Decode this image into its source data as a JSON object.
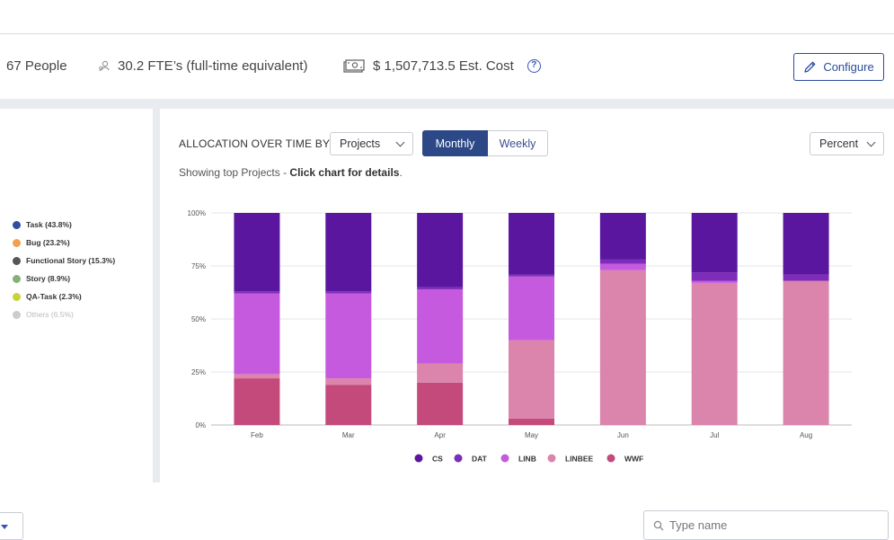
{
  "stats": {
    "people": "67 People",
    "fte": "30.2 FTE’s (full-time equivalent)",
    "cost": "$ 1,507,713.5 Est. Cost",
    "configure_label": "Configure"
  },
  "left_legend": [
    {
      "label": "Task (43.8%)",
      "color": "#2f4ea0"
    },
    {
      "label": "Bug (23.2%)",
      "color": "#f0a050"
    },
    {
      "label": "Functional Story (15.3%)",
      "color": "#555555"
    },
    {
      "label": "Story (8.9%)",
      "color": "#86b07a"
    },
    {
      "label": "QA-Task (2.3%)",
      "color": "#c8d23a"
    },
    {
      "label": "Others (6.5%)",
      "color": "#cccccc",
      "muted": true
    }
  ],
  "controls": {
    "alloc_label": "ALLOCATION OVER TIME BY",
    "group_by": "Projects",
    "monthly": "Monthly",
    "weekly": "Weekly",
    "unit": "Percent",
    "subtitle_prefix": "Showing top Projects - ",
    "subtitle_bold": "Click chart for details",
    "subtitle_suffix": "."
  },
  "search": {
    "placeholder": "Type name"
  },
  "chart_data": {
    "type": "bar",
    "stacked": true,
    "categories": [
      "Feb",
      "Mar",
      "Apr",
      "May",
      "Jun",
      "Jul",
      "Aug"
    ],
    "ylim": [
      0,
      100
    ],
    "yticks": [
      "0%",
      "25%",
      "50%",
      "75%",
      "100%"
    ],
    "legend_position": "bottom",
    "series": [
      {
        "name": "WWF",
        "color": "#c44a7c",
        "values": [
          22,
          19,
          20,
          3,
          0,
          0,
          0
        ]
      },
      {
        "name": "LINBEE",
        "color": "#db84ac",
        "values": [
          2,
          3,
          9,
          37,
          73,
          67,
          68
        ]
      },
      {
        "name": "LINB",
        "color": "#c65ade",
        "values": [
          38,
          40,
          35,
          30,
          3,
          1,
          0
        ]
      },
      {
        "name": "DAT",
        "color": "#7e2db8",
        "values": [
          1,
          1,
          1,
          1,
          2,
          4,
          3
        ]
      },
      {
        "name": "CS",
        "color": "#5b16a0",
        "values": [
          37,
          37,
          35,
          29,
          22,
          28,
          29
        ]
      }
    ],
    "legend_order": [
      "CS",
      "DAT",
      "LINB",
      "LINBEE",
      "WWF"
    ]
  }
}
